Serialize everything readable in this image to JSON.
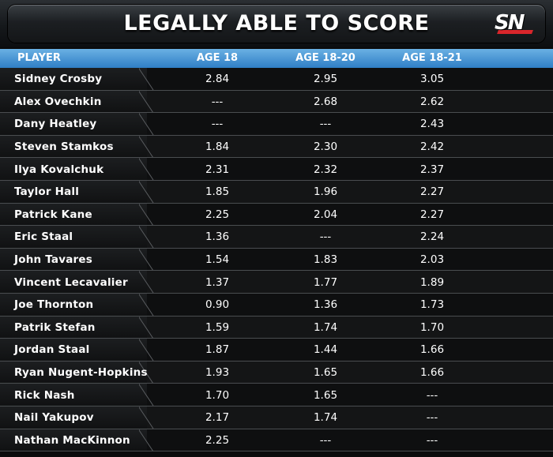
{
  "header": {
    "title": "LEGALLY ABLE TO SCORE",
    "logo_text": "SN"
  },
  "colors": {
    "header_blue": "#2f7fc6",
    "logo_red": "#d9262b",
    "text": "#ffffff",
    "background": "#0b0b0c"
  },
  "chart_data": {
    "type": "table",
    "title": "LEGALLY ABLE TO SCORE",
    "columns": [
      "PLAYER",
      "AGE 18",
      "AGE 18-20",
      "AGE 18-21"
    ],
    "rows": [
      [
        "Sidney Crosby",
        "2.84",
        "2.95",
        "3.05"
      ],
      [
        "Alex Ovechkin",
        "---",
        "2.68",
        "2.62"
      ],
      [
        "Dany Heatley",
        "---",
        "---",
        "2.43"
      ],
      [
        "Steven Stamkos",
        "1.84",
        "2.30",
        "2.42"
      ],
      [
        "Ilya Kovalchuk",
        "2.31",
        "2.32",
        "2.37"
      ],
      [
        "Taylor Hall",
        "1.85",
        "1.96",
        "2.27"
      ],
      [
        "Patrick Kane",
        "2.25",
        "2.04",
        "2.27"
      ],
      [
        "Eric Staal",
        "1.36",
        "---",
        "2.24"
      ],
      [
        "John Tavares",
        "1.54",
        "1.83",
        "2.03"
      ],
      [
        "Vincent Lecavalier",
        "1.37",
        "1.77",
        "1.89"
      ],
      [
        "Joe Thornton",
        "0.90",
        "1.36",
        "1.73"
      ],
      [
        "Patrik Stefan",
        "1.59",
        "1.74",
        "1.70"
      ],
      [
        "Jordan Staal",
        "1.87",
        "1.44",
        "1.66"
      ],
      [
        "Ryan Nugent-Hopkins",
        "1.93",
        "1.65",
        "1.66"
      ],
      [
        "Rick Nash",
        "1.70",
        "1.65",
        "---"
      ],
      [
        "Nail Yakupov",
        "2.17",
        "1.74",
        "---"
      ],
      [
        "Nathan MacKinnon",
        "2.25",
        "---",
        "---"
      ]
    ]
  }
}
